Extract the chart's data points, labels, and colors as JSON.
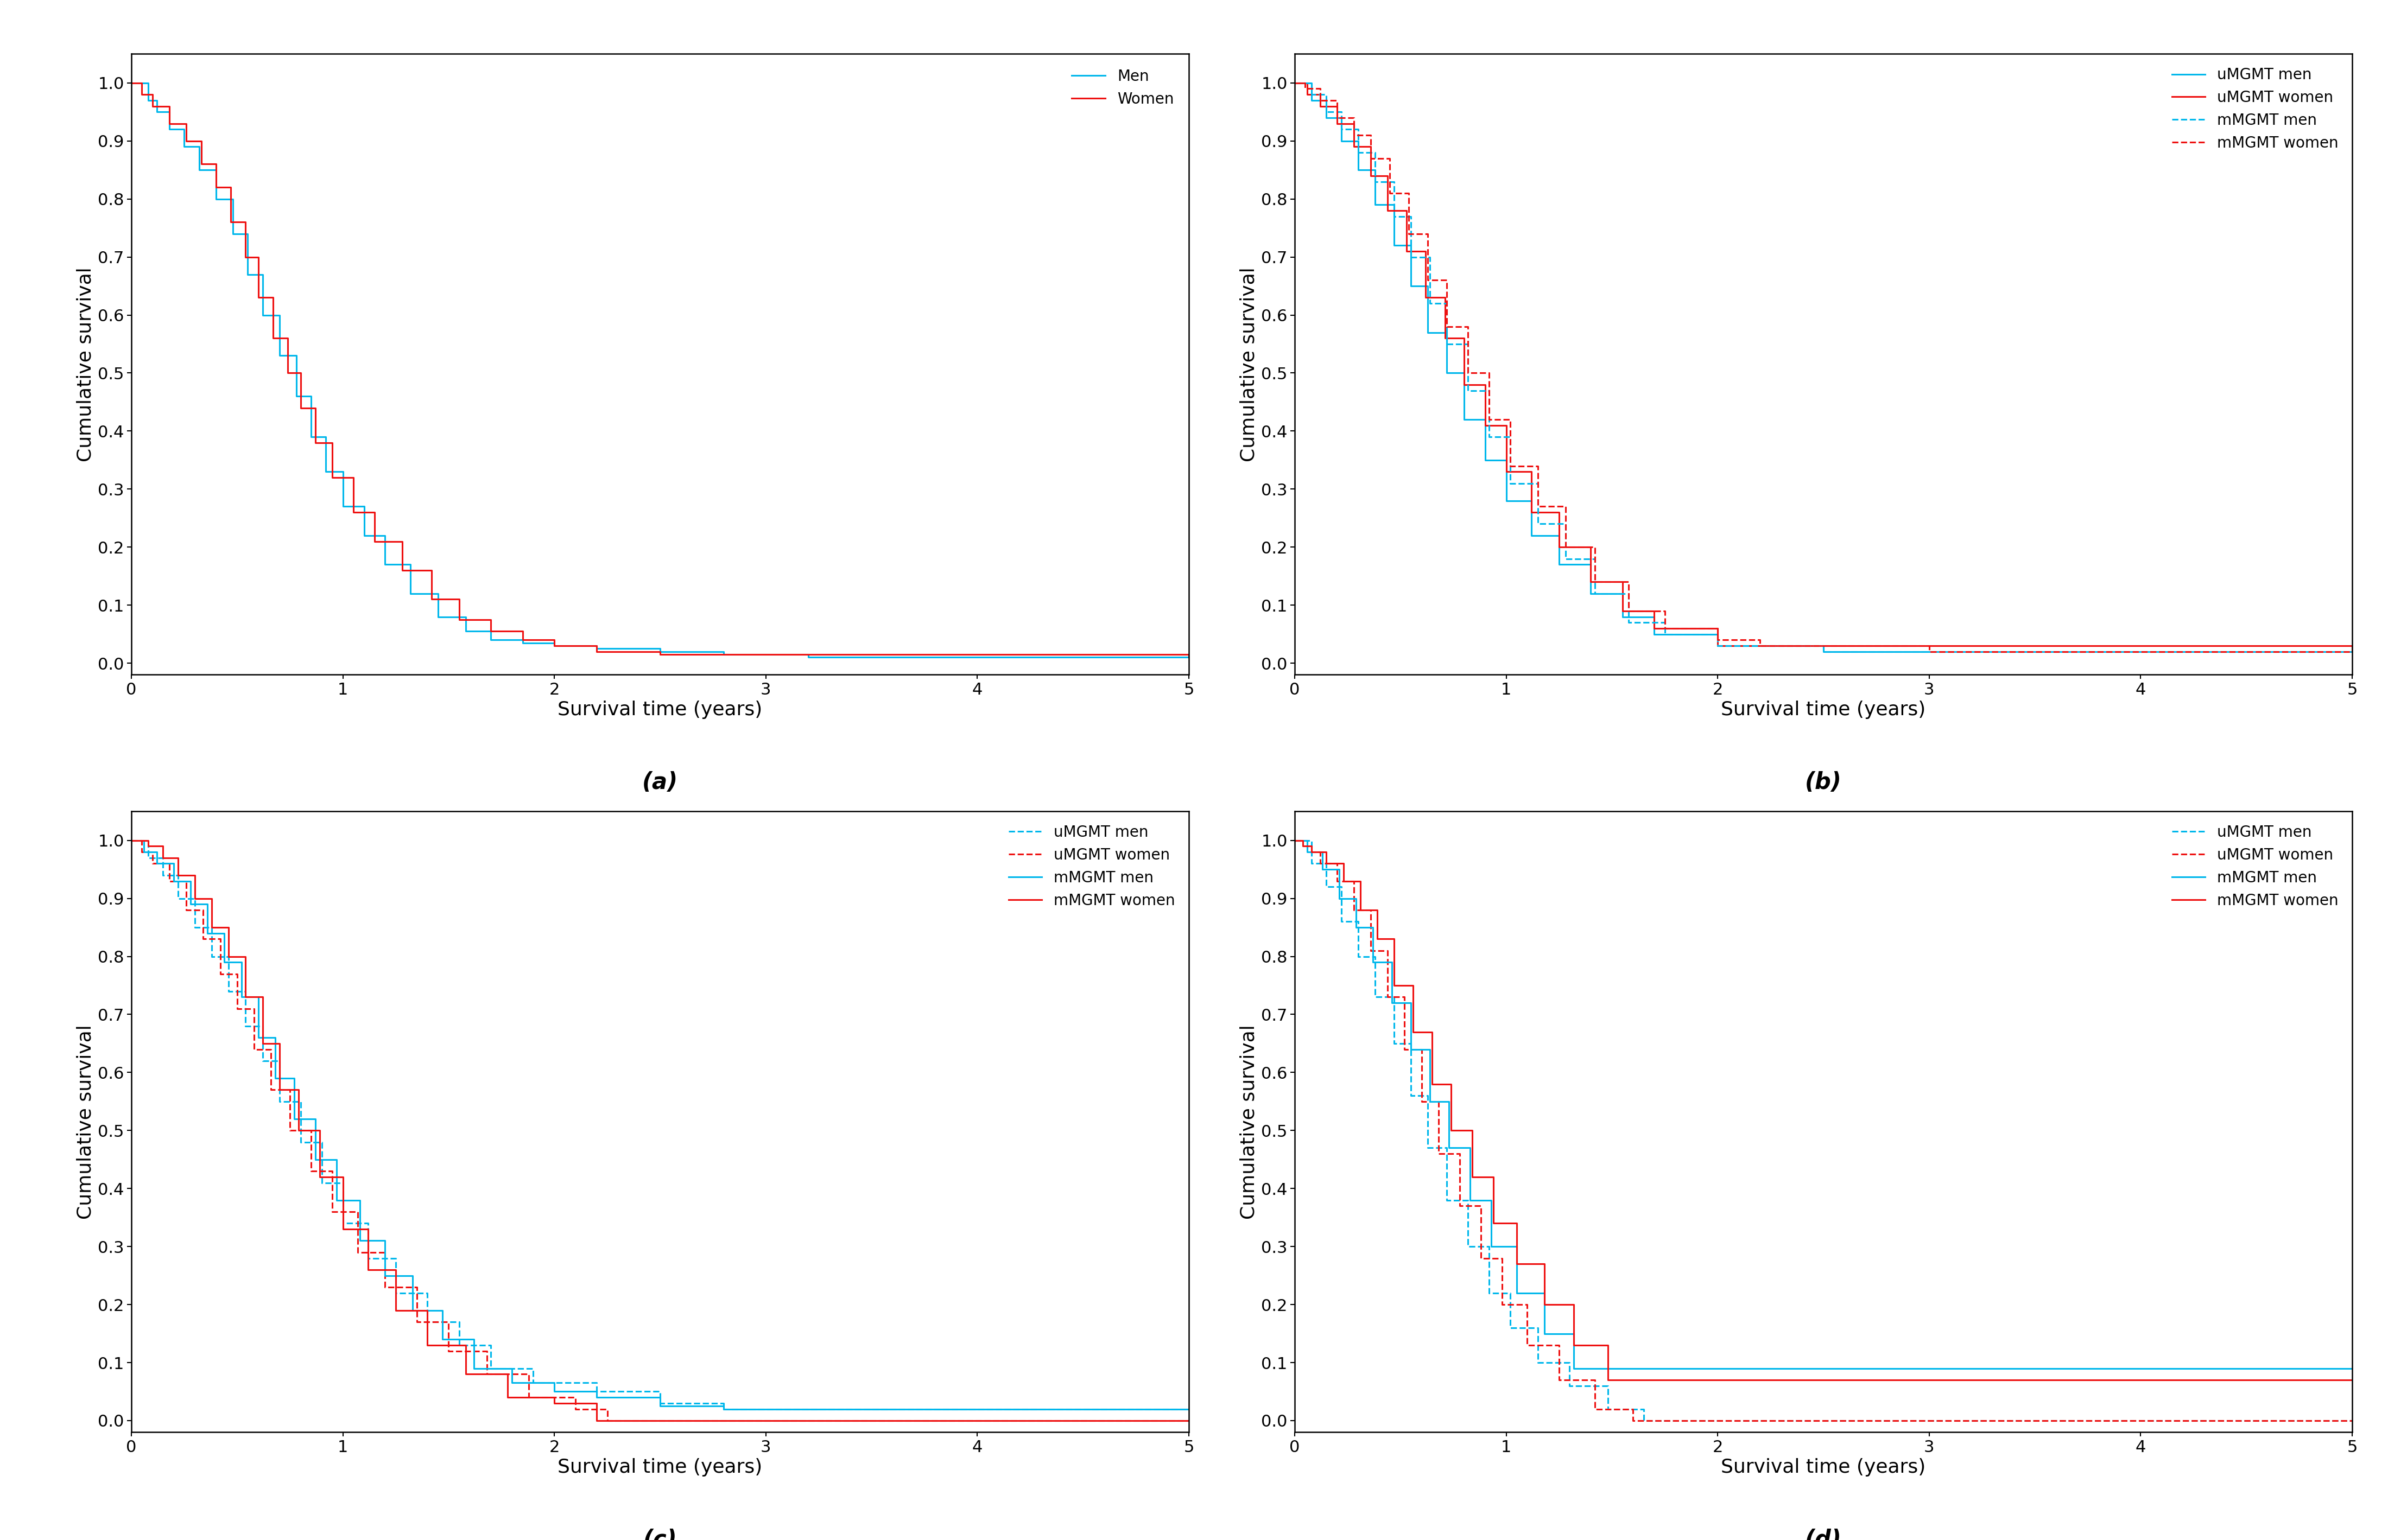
{
  "xlabel": "Survival time (years)",
  "ylabel": "Cumulative survival",
  "xlim": [
    0,
    5
  ],
  "yticks": [
    0.0,
    0.1,
    0.2,
    0.3,
    0.4,
    0.5,
    0.6,
    0.7,
    0.8,
    0.9,
    1.0
  ],
  "xticks": [
    0,
    1,
    2,
    3,
    4,
    5
  ],
  "cyan": "#00B7EB",
  "red": "#EE1111",
  "label_fontsize": 26,
  "tick_fontsize": 22,
  "legend_fontsize": 20,
  "subtitle_fontsize": 30,
  "linewidth": 2.2,
  "panel_a": {
    "men": {
      "t": [
        0,
        0.08,
        0.12,
        0.18,
        0.25,
        0.32,
        0.4,
        0.48,
        0.55,
        0.62,
        0.7,
        0.78,
        0.85,
        0.92,
        1.0,
        1.1,
        1.2,
        1.32,
        1.45,
        1.58,
        1.7,
        1.85,
        2.0,
        2.2,
        2.5,
        2.8,
        3.2,
        5.0
      ],
      "s": [
        1.0,
        0.97,
        0.95,
        0.92,
        0.89,
        0.85,
        0.8,
        0.74,
        0.67,
        0.6,
        0.53,
        0.46,
        0.39,
        0.33,
        0.27,
        0.22,
        0.17,
        0.12,
        0.08,
        0.055,
        0.04,
        0.035,
        0.03,
        0.025,
        0.02,
        0.015,
        0.01,
        0.01
      ]
    },
    "women": {
      "t": [
        0,
        0.05,
        0.1,
        0.18,
        0.26,
        0.33,
        0.4,
        0.47,
        0.54,
        0.6,
        0.67,
        0.74,
        0.8,
        0.87,
        0.95,
        1.05,
        1.15,
        1.28,
        1.42,
        1.55,
        1.7,
        1.85,
        2.0,
        2.2,
        2.5,
        5.0
      ],
      "s": [
        1.0,
        0.98,
        0.96,
        0.93,
        0.9,
        0.86,
        0.82,
        0.76,
        0.7,
        0.63,
        0.56,
        0.5,
        0.44,
        0.38,
        0.32,
        0.26,
        0.21,
        0.16,
        0.11,
        0.075,
        0.055,
        0.04,
        0.03,
        0.02,
        0.015,
        0.01
      ]
    }
  },
  "panel_b": {
    "uMGMT_men": {
      "t": [
        0,
        0.08,
        0.15,
        0.22,
        0.3,
        0.38,
        0.47,
        0.55,
        0.63,
        0.72,
        0.8,
        0.9,
        1.0,
        1.12,
        1.25,
        1.4,
        1.55,
        1.7,
        2.0,
        2.5,
        3.0,
        5.0
      ],
      "s": [
        1.0,
        0.97,
        0.94,
        0.9,
        0.85,
        0.79,
        0.72,
        0.65,
        0.57,
        0.5,
        0.42,
        0.35,
        0.28,
        0.22,
        0.17,
        0.12,
        0.08,
        0.05,
        0.03,
        0.02,
        0.02,
        0.02
      ]
    },
    "uMGMT_women": {
      "t": [
        0,
        0.06,
        0.12,
        0.2,
        0.28,
        0.36,
        0.44,
        0.53,
        0.62,
        0.71,
        0.8,
        0.9,
        1.0,
        1.12,
        1.25,
        1.4,
        1.55,
        1.7,
        2.0,
        5.0
      ],
      "s": [
        1.0,
        0.98,
        0.96,
        0.93,
        0.89,
        0.84,
        0.78,
        0.71,
        0.63,
        0.56,
        0.48,
        0.41,
        0.33,
        0.26,
        0.2,
        0.14,
        0.09,
        0.06,
        0.03,
        0.02
      ]
    },
    "mMGMT_men": {
      "t": [
        0,
        0.08,
        0.15,
        0.22,
        0.3,
        0.38,
        0.47,
        0.55,
        0.64,
        0.72,
        0.82,
        0.92,
        1.02,
        1.15,
        1.28,
        1.42,
        1.58,
        1.75,
        2.0,
        2.5,
        5.0
      ],
      "s": [
        1.0,
        0.98,
        0.95,
        0.92,
        0.88,
        0.83,
        0.77,
        0.7,
        0.62,
        0.55,
        0.47,
        0.39,
        0.31,
        0.24,
        0.18,
        0.12,
        0.07,
        0.05,
        0.03,
        0.02,
        0.02
      ]
    },
    "mMGMT_women": {
      "t": [
        0,
        0.05,
        0.12,
        0.2,
        0.28,
        0.36,
        0.45,
        0.54,
        0.63,
        0.72,
        0.82,
        0.92,
        1.02,
        1.15,
        1.28,
        1.42,
        1.58,
        1.75,
        2.0,
        2.2,
        3.0,
        5.0
      ],
      "s": [
        1.0,
        0.99,
        0.97,
        0.94,
        0.91,
        0.87,
        0.81,
        0.74,
        0.66,
        0.58,
        0.5,
        0.42,
        0.34,
        0.27,
        0.2,
        0.14,
        0.09,
        0.06,
        0.04,
        0.03,
        0.02,
        0.02
      ]
    }
  },
  "panel_c": {
    "uMGMT_men": {
      "t": [
        0,
        0.08,
        0.15,
        0.22,
        0.3,
        0.38,
        0.46,
        0.54,
        0.62,
        0.7,
        0.8,
        0.9,
        1.0,
        1.12,
        1.25,
        1.4,
        1.55,
        1.7,
        1.9,
        2.2,
        2.5,
        2.8,
        5.0
      ],
      "s": [
        1.0,
        0.97,
        0.94,
        0.9,
        0.85,
        0.8,
        0.74,
        0.68,
        0.62,
        0.55,
        0.48,
        0.41,
        0.34,
        0.28,
        0.22,
        0.17,
        0.13,
        0.09,
        0.065,
        0.05,
        0.03,
        0.02,
        0.02
      ]
    },
    "uMGMT_women": {
      "t": [
        0,
        0.05,
        0.1,
        0.18,
        0.26,
        0.34,
        0.42,
        0.5,
        0.58,
        0.66,
        0.75,
        0.85,
        0.95,
        1.07,
        1.2,
        1.35,
        1.5,
        1.68,
        1.88,
        2.1,
        2.25,
        5.0
      ],
      "s": [
        1.0,
        0.98,
        0.96,
        0.93,
        0.88,
        0.83,
        0.77,
        0.71,
        0.64,
        0.57,
        0.5,
        0.43,
        0.36,
        0.29,
        0.23,
        0.17,
        0.12,
        0.08,
        0.04,
        0.02,
        0.0,
        0.0
      ]
    },
    "mMGMT_men": {
      "t": [
        0,
        0.06,
        0.12,
        0.2,
        0.28,
        0.36,
        0.44,
        0.52,
        0.6,
        0.68,
        0.77,
        0.87,
        0.97,
        1.08,
        1.2,
        1.33,
        1.47,
        1.62,
        1.8,
        2.0,
        2.2,
        2.5,
        2.8,
        5.0
      ],
      "s": [
        1.0,
        0.98,
        0.96,
        0.93,
        0.89,
        0.84,
        0.79,
        0.73,
        0.66,
        0.59,
        0.52,
        0.45,
        0.38,
        0.31,
        0.25,
        0.19,
        0.14,
        0.09,
        0.065,
        0.05,
        0.04,
        0.025,
        0.02,
        0.02
      ]
    },
    "mMGMT_women": {
      "t": [
        0,
        0.04,
        0.08,
        0.15,
        0.22,
        0.3,
        0.38,
        0.46,
        0.54,
        0.62,
        0.7,
        0.79,
        0.89,
        1.0,
        1.12,
        1.25,
        1.4,
        1.58,
        1.78,
        2.0,
        2.2,
        5.0
      ],
      "s": [
        1.0,
        1.0,
        0.99,
        0.97,
        0.94,
        0.9,
        0.85,
        0.8,
        0.73,
        0.65,
        0.57,
        0.5,
        0.42,
        0.33,
        0.26,
        0.19,
        0.13,
        0.08,
        0.04,
        0.03,
        0.0,
        0.0
      ]
    }
  },
  "panel_d": {
    "uMGMT_men": {
      "t": [
        0,
        0.08,
        0.15,
        0.22,
        0.3,
        0.38,
        0.47,
        0.55,
        0.63,
        0.72,
        0.82,
        0.92,
        1.02,
        1.15,
        1.3,
        1.48,
        1.65,
        5.0
      ],
      "s": [
        1.0,
        0.96,
        0.92,
        0.86,
        0.8,
        0.73,
        0.65,
        0.56,
        0.47,
        0.38,
        0.3,
        0.22,
        0.16,
        0.1,
        0.06,
        0.02,
        0.0,
        0.0
      ]
    },
    "uMGMT_women": {
      "t": [
        0,
        0.06,
        0.12,
        0.2,
        0.28,
        0.36,
        0.44,
        0.52,
        0.6,
        0.68,
        0.78,
        0.88,
        0.98,
        1.1,
        1.25,
        1.42,
        1.6,
        1.92,
        5.0
      ],
      "s": [
        1.0,
        0.98,
        0.96,
        0.93,
        0.88,
        0.81,
        0.73,
        0.64,
        0.55,
        0.46,
        0.37,
        0.28,
        0.2,
        0.13,
        0.07,
        0.02,
        0.0,
        0.0,
        0.0
      ]
    },
    "mMGMT_men": {
      "t": [
        0,
        0.06,
        0.13,
        0.21,
        0.29,
        0.37,
        0.46,
        0.55,
        0.64,
        0.73,
        0.83,
        0.93,
        1.05,
        1.18,
        1.32,
        1.48,
        1.65,
        5.0
      ],
      "s": [
        1.0,
        0.98,
        0.95,
        0.9,
        0.85,
        0.79,
        0.72,
        0.64,
        0.55,
        0.47,
        0.38,
        0.3,
        0.22,
        0.15,
        0.09,
        0.09,
        0.09,
        0.09
      ]
    },
    "mMGMT_women": {
      "t": [
        0,
        0.04,
        0.08,
        0.15,
        0.23,
        0.31,
        0.39,
        0.47,
        0.56,
        0.65,
        0.74,
        0.84,
        0.94,
        1.05,
        1.18,
        1.32,
        1.48,
        1.65,
        5.0
      ],
      "s": [
        1.0,
        0.99,
        0.98,
        0.96,
        0.93,
        0.88,
        0.83,
        0.75,
        0.67,
        0.58,
        0.5,
        0.42,
        0.34,
        0.27,
        0.2,
        0.13,
        0.07,
        0.07,
        0.07
      ]
    }
  }
}
